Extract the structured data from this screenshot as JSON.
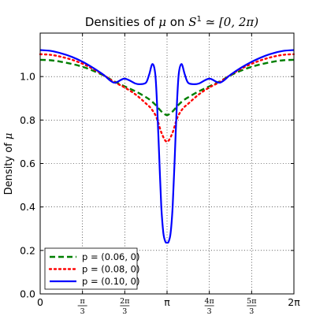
{
  "chart_data": {
    "type": "line",
    "title_prefix": "Densities of ",
    "title_mu": "μ",
    "title_mid": " on ",
    "title_set": "S",
    "title_sup": "1",
    "title_suffix": " ≃ [0, 2π)",
    "ylabel_prefix": "Density of ",
    "ylabel_mu": "μ",
    "xlabel": "",
    "xlim": [
      0,
      6.2832
    ],
    "ylim": [
      0.0,
      1.2
    ],
    "grid": true,
    "grid_style": "dotted",
    "legend_position": "bottom-left",
    "y_ticks": [
      "0.0",
      "0.2",
      "0.4",
      "0.6",
      "0.8",
      "1.0"
    ],
    "x_ticks": [
      {
        "kind": "plain",
        "text": "0"
      },
      {
        "kind": "frac",
        "num": "π",
        "den": "3"
      },
      {
        "kind": "frac",
        "num": "2π",
        "den": "3"
      },
      {
        "kind": "plain",
        "text": "π"
      },
      {
        "kind": "frac",
        "num": "4π",
        "den": "3"
      },
      {
        "kind": "frac",
        "num": "5π",
        "den": "3"
      },
      {
        "kind": "plain",
        "text": "2π"
      }
    ],
    "series": [
      {
        "name": "p = (0.06, 0)",
        "color": "#007f00",
        "style": "dashed",
        "x": [
          0,
          0.26,
          0.52,
          0.79,
          1.05,
          1.31,
          1.57,
          1.83,
          2.09,
          2.36,
          2.62,
          2.75,
          2.88,
          3.01,
          3.14,
          3.27,
          3.4,
          3.53,
          3.67,
          3.93,
          4.19,
          4.45,
          4.71,
          4.97,
          5.24,
          5.5,
          5.76,
          6.02,
          6.28
        ],
        "y": [
          1.077,
          1.075,
          1.068,
          1.058,
          1.045,
          1.027,
          1.005,
          0.978,
          0.955,
          0.932,
          0.905,
          0.888,
          0.865,
          0.838,
          0.823,
          0.838,
          0.865,
          0.888,
          0.905,
          0.932,
          0.955,
          0.978,
          1.005,
          1.027,
          1.045,
          1.058,
          1.068,
          1.075,
          1.077
        ]
      },
      {
        "name": "p = (0.08, 0)",
        "color": "#ff0000",
        "style": "dotted",
        "x": [
          0,
          0.26,
          0.52,
          0.79,
          1.05,
          1.31,
          1.57,
          1.83,
          2.09,
          2.36,
          2.62,
          2.75,
          2.88,
          3.01,
          3.14,
          3.27,
          3.4,
          3.53,
          3.67,
          3.93,
          4.19,
          4.45,
          4.71,
          4.97,
          5.24,
          5.5,
          5.76,
          6.02,
          6.28
        ],
        "y": [
          1.103,
          1.1,
          1.091,
          1.077,
          1.059,
          1.035,
          1.007,
          0.975,
          0.95,
          0.918,
          0.876,
          0.852,
          0.812,
          0.738,
          0.7,
          0.738,
          0.812,
          0.852,
          0.876,
          0.918,
          0.95,
          0.975,
          1.007,
          1.035,
          1.059,
          1.077,
          1.091,
          1.1,
          1.103
        ]
      },
      {
        "name": "p = (0.10, 0)",
        "color": "#0000ff",
        "style": "solid",
        "x": [
          0,
          0.26,
          0.52,
          0.79,
          1.05,
          1.31,
          1.57,
          1.83,
          2.09,
          2.36,
          2.48,
          2.62,
          2.7,
          2.78,
          2.85,
          2.9,
          2.95,
          3.0,
          3.05,
          3.1,
          3.14,
          3.18,
          3.23,
          3.28,
          3.33,
          3.38,
          3.43,
          3.5,
          3.58,
          3.66,
          3.79,
          3.93,
          4.19,
          4.45,
          4.71,
          4.97,
          5.24,
          5.5,
          5.76,
          6.02,
          6.28
        ],
        "y": [
          1.122,
          1.118,
          1.107,
          1.09,
          1.068,
          1.04,
          1.008,
          0.972,
          0.99,
          0.968,
          0.965,
          0.972,
          1.01,
          1.058,
          1.01,
          0.85,
          0.62,
          0.4,
          0.28,
          0.24,
          0.236,
          0.24,
          0.28,
          0.4,
          0.62,
          0.85,
          1.01,
          1.058,
          1.01,
          0.972,
          0.965,
          0.968,
          0.99,
          0.972,
          1.008,
          1.04,
          1.068,
          1.09,
          1.107,
          1.118,
          1.122
        ]
      }
    ]
  }
}
